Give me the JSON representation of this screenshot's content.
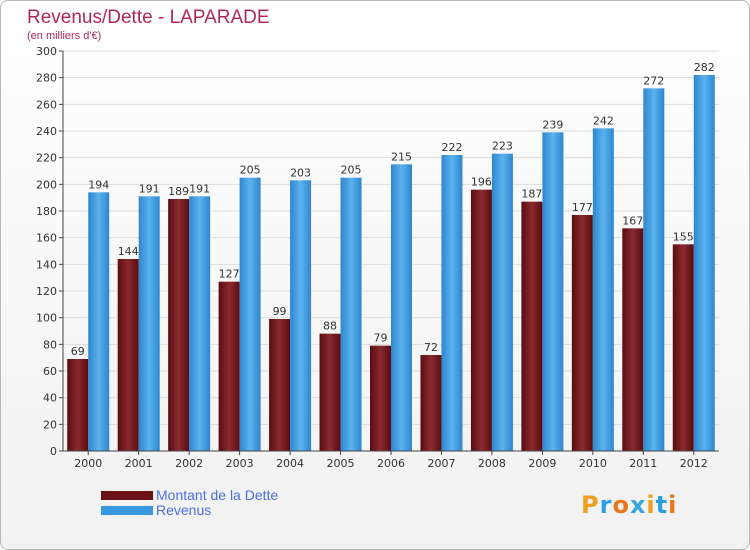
{
  "chart_data": {
    "type": "bar",
    "title": "Revenus/Dette - LAPARADE",
    "subtitle": "(en milliers d'€)",
    "categories": [
      "2000",
      "2001",
      "2002",
      "2003",
      "2004",
      "2005",
      "2006",
      "2007",
      "2008",
      "2009",
      "2010",
      "2011",
      "2012"
    ],
    "series": [
      {
        "name": "Montant de la Dette",
        "color": "#7a1a1e",
        "values": [
          69,
          144,
          189,
          127,
          99,
          88,
          79,
          72,
          196,
          187,
          177,
          167,
          155
        ]
      },
      {
        "name": "Revenus",
        "color": "#4aa3e6",
        "values": [
          194,
          191,
          191,
          205,
          203,
          205,
          215,
          222,
          223,
          239,
          242,
          272,
          282
        ]
      }
    ],
    "ylim": [
      0,
      300
    ],
    "yticks": [
      0,
      20,
      40,
      60,
      80,
      100,
      120,
      140,
      160,
      180,
      200,
      220,
      240,
      260,
      280,
      300
    ],
    "grid": true,
    "legend": "bottom-left"
  },
  "branding": {
    "logo_letters": [
      "P",
      "r",
      "o",
      "x",
      "i",
      "t",
      "i"
    ],
    "logo_colors": [
      "#f0a020",
      "#2aa0e0",
      "#e8761a",
      "#3aa6e0",
      "#f0a020",
      "#2aa0e0",
      "#e8761a"
    ]
  }
}
